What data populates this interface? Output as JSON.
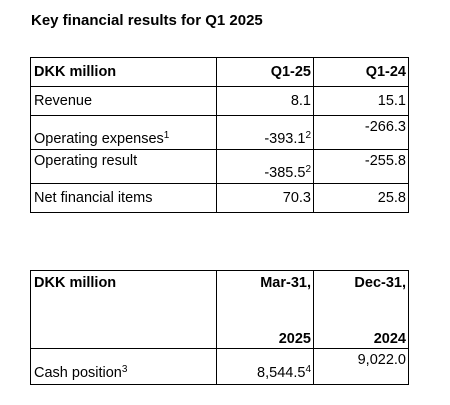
{
  "title": "Key financial results for Q1 2025",
  "results_table": {
    "header": {
      "label": "DKK million",
      "col1": "Q1-25",
      "col2": "Q1-24"
    },
    "rows": [
      {
        "label": "Revenue",
        "label_sup": "",
        "q125": "8.1",
        "q125_sup": "",
        "q124": "15.1"
      },
      {
        "label": "Operating expenses",
        "label_sup": "1",
        "q125": "-393.1",
        "q125_sup": "2",
        "q124": "-266.3"
      },
      {
        "label": "Operating result",
        "label_sup": "",
        "q125": "-385.5",
        "q125_sup": "2",
        "q124": "-255.8"
      },
      {
        "label": "Net financial items",
        "label_sup": "",
        "q125": "70.3",
        "q125_sup": "",
        "q124": "25.8"
      }
    ]
  },
  "cash_table": {
    "header": {
      "label": "DKK million",
      "col1_line1": "Mar-31,",
      "col1_line2": "2025",
      "col2_line1": "Dec-31,",
      "col2_line2": "2024"
    },
    "rows": [
      {
        "label": "Cash position",
        "label_sup": "3",
        "mar": "8,544.5",
        "mar_sup": "4",
        "dec": "9,022.0"
      }
    ]
  }
}
